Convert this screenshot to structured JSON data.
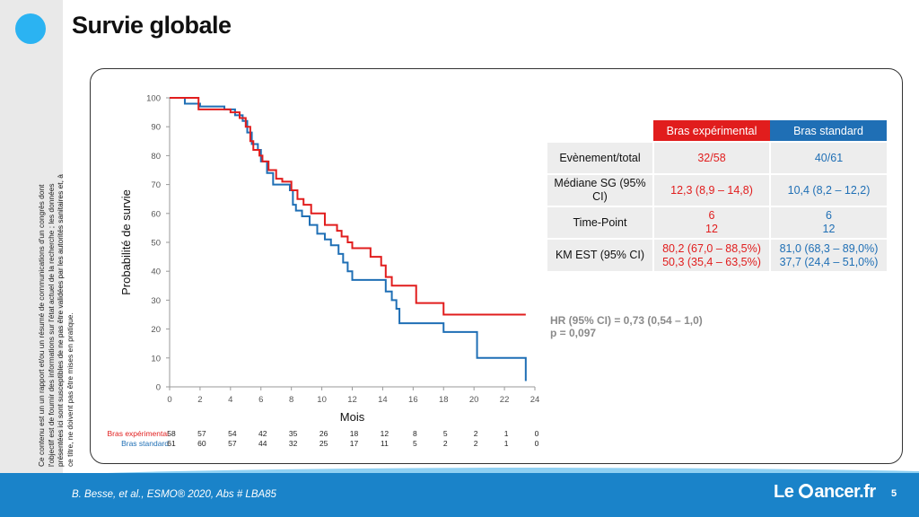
{
  "slide": {
    "title": "Survie globale",
    "disclaimer": "Ce contenu est un un rapport et/ou un résumé de communications d'un congrès dont l'objectif est de fournir des informations sur l'état actuel de la recherche ; les données présentées ici sont susceptibles de ne pas être validées par les autorités sanitaires et, à ce titre, ne doivent pas être mises en pratique.",
    "citation": "B. Besse, et al., ESMO® 2020, Abs # LBA85",
    "logo_left": "Le",
    "logo_right": "ancer.fr",
    "page_number": "5"
  },
  "colors": {
    "experimental": "#e11d1d",
    "standard": "#1f6fb5",
    "accent": "#2bb3f2",
    "footer": "#1a83c9"
  },
  "chart_data": {
    "type": "line",
    "title": "",
    "xlabel": "Mois",
    "ylabel": "Probabilité de survie",
    "xlim": [
      0,
      24
    ],
    "ylim": [
      0,
      100
    ],
    "xticks": [
      "0",
      "2",
      "4",
      "6",
      "8",
      "10",
      "12",
      "14",
      "16",
      "18",
      "20",
      "22",
      "24"
    ],
    "yticks": [
      "0",
      "10",
      "20",
      "30",
      "40",
      "50",
      "60",
      "70",
      "80",
      "90",
      "100"
    ],
    "grid": false,
    "series": [
      {
        "name": "Bras expérimental",
        "step": true,
        "x": [
          0,
          1.9,
          2.8,
          4.0,
          4.6,
          5.0,
          5.3,
          5.5,
          5.9,
          6.1,
          6.5,
          7.0,
          7.4,
          8.0,
          8.4,
          8.8,
          9.3,
          10.0,
          10.2,
          11.0,
          11.3,
          11.7,
          12.0,
          12.2,
          13.2,
          13.9,
          14.2,
          14.6,
          15.4,
          16.2,
          17.7,
          18.0,
          20.0,
          22.0,
          23.4
        ],
        "y": [
          100,
          96,
          96,
          95,
          93,
          90,
          85,
          82,
          80,
          78,
          75,
          72,
          71,
          68,
          65,
          63,
          60,
          60,
          56,
          54,
          52,
          50,
          48,
          48,
          45,
          42,
          38,
          35,
          35,
          29,
          29,
          25,
          25,
          25,
          25
        ]
      },
      {
        "name": "Bras standard",
        "step": true,
        "x": [
          0,
          1.0,
          2.0,
          3.6,
          4.3,
          4.8,
          5.1,
          5.4,
          5.8,
          6.0,
          6.4,
          6.8,
          7.1,
          7.9,
          8.1,
          8.3,
          8.7,
          9.2,
          9.7,
          10.2,
          10.6,
          11.1,
          11.4,
          11.7,
          12.0,
          13.0,
          14.2,
          14.6,
          14.9,
          15.1,
          15.9,
          18.0,
          19.5,
          20.2,
          21.0,
          23.2,
          23.4
        ],
        "y": [
          100,
          98,
          97,
          96,
          94,
          92,
          88,
          84,
          82,
          78,
          74,
          70,
          70,
          68,
          63,
          61,
          59,
          56,
          53,
          51,
          49,
          46,
          43,
          40,
          37,
          37,
          33,
          30,
          27,
          22,
          22,
          19,
          19,
          10,
          10,
          10,
          2
        ]
      }
    ],
    "at_risk": {
      "times": [
        0,
        2,
        4,
        6,
        8,
        10,
        12,
        14,
        16,
        18,
        20,
        22,
        24
      ],
      "rows": [
        {
          "label": "Bras expérimental",
          "values": [
            "58",
            "57",
            "54",
            "42",
            "35",
            "26",
            "18",
            "12",
            "8",
            "5",
            "2",
            "1",
            "0"
          ]
        },
        {
          "label": "Bras standard",
          "values": [
            "61",
            "60",
            "57",
            "44",
            "32",
            "25",
            "17",
            "11",
            "5",
            "2",
            "2",
            "1",
            "0"
          ]
        }
      ]
    }
  },
  "results_table": {
    "header_experimental": "Bras expérimental",
    "header_standard": "Bras standard",
    "rows": [
      {
        "label": "Evènement/total",
        "exp": "32/58",
        "std": "40/61"
      },
      {
        "label": "Médiane SG (95% CI)",
        "exp": "12,3 (8,9 – 14,8)",
        "std": "10,4 (8,2 – 12,2)"
      },
      {
        "label": "Time-Point",
        "exp_lines": [
          "6",
          "12"
        ],
        "std_lines": [
          "6",
          "12"
        ]
      },
      {
        "label": "KM EST (95% CI)",
        "exp_lines": [
          "80,2 (67,0 – 88,5%)",
          "50,3 (35,4 – 63,5%)"
        ],
        "std_lines": [
          "81,0 (68,3 – 89,0%)",
          "37,7 (24,4 – 51,0%)"
        ]
      }
    ]
  },
  "stats": {
    "hr": "HR (95% CI) = 0,73 (0,54 – 1,0)",
    "p": "p = 0,097"
  }
}
